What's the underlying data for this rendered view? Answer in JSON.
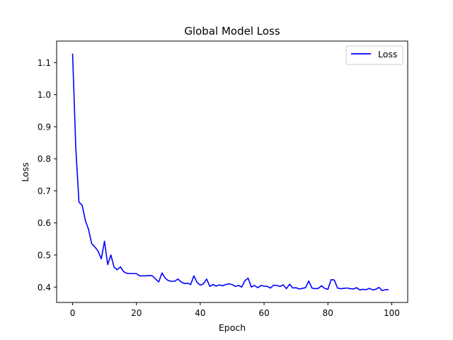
{
  "chart_data": {
    "type": "line",
    "title": "Global Model Loss",
    "xlabel": "Epoch",
    "ylabel": "Loss",
    "xlim": [
      -5,
      105
    ],
    "ylim": [
      0.352,
      1.167
    ],
    "xticks": [
      0,
      20,
      40,
      60,
      80,
      100
    ],
    "yticks": [
      0.4,
      0.5,
      0.6,
      0.7,
      0.8,
      0.9,
      1.0,
      1.1
    ],
    "ytick_labels": [
      "0.4",
      "0.5",
      "0.6",
      "0.7",
      "0.8",
      "0.9",
      "1.0",
      "1.1"
    ],
    "grid": false,
    "legend_position": "top-right",
    "series": [
      {
        "name": "Loss",
        "color": "#0000ff",
        "x": [
          0,
          1,
          2,
          3,
          4,
          5,
          6,
          7,
          8,
          9,
          10,
          11,
          12,
          13,
          14,
          15,
          16,
          17,
          18,
          19,
          20,
          21,
          22,
          23,
          24,
          25,
          26,
          27,
          28,
          29,
          30,
          31,
          32,
          33,
          34,
          35,
          36,
          37,
          38,
          39,
          40,
          41,
          42,
          43,
          44,
          45,
          46,
          47,
          48,
          49,
          50,
          51,
          52,
          53,
          54,
          55,
          56,
          57,
          58,
          59,
          60,
          61,
          62,
          63,
          64,
          65,
          66,
          67,
          68,
          69,
          70,
          71,
          72,
          73,
          74,
          75,
          76,
          77,
          78,
          79,
          80,
          81,
          82,
          83,
          84,
          85,
          86,
          87,
          88,
          89,
          90,
          91,
          92,
          93,
          94,
          95,
          96,
          97,
          98,
          99
        ],
        "y": [
          1.128,
          0.835,
          0.665,
          0.655,
          0.608,
          0.58,
          0.535,
          0.525,
          0.512,
          0.488,
          0.543,
          0.47,
          0.5,
          0.462,
          0.454,
          0.463,
          0.448,
          0.443,
          0.442,
          0.442,
          0.442,
          0.435,
          0.435,
          0.435,
          0.436,
          0.435,
          0.425,
          0.416,
          0.444,
          0.428,
          0.42,
          0.418,
          0.418,
          0.425,
          0.416,
          0.411,
          0.412,
          0.408,
          0.435,
          0.415,
          0.406,
          0.41,
          0.425,
          0.402,
          0.408,
          0.403,
          0.407,
          0.404,
          0.408,
          0.41,
          0.408,
          0.402,
          0.405,
          0.4,
          0.42,
          0.428,
          0.4,
          0.405,
          0.398,
          0.405,
          0.403,
          0.402,
          0.397,
          0.406,
          0.405,
          0.402,
          0.407,
          0.395,
          0.409,
          0.397,
          0.398,
          0.394,
          0.396,
          0.398,
          0.419,
          0.397,
          0.395,
          0.396,
          0.404,
          0.396,
          0.393,
          0.423,
          0.422,
          0.397,
          0.395,
          0.396,
          0.397,
          0.395,
          0.394,
          0.398,
          0.391,
          0.393,
          0.392,
          0.396,
          0.391,
          0.393,
          0.399,
          0.389,
          0.392,
          0.392
        ]
      }
    ]
  }
}
